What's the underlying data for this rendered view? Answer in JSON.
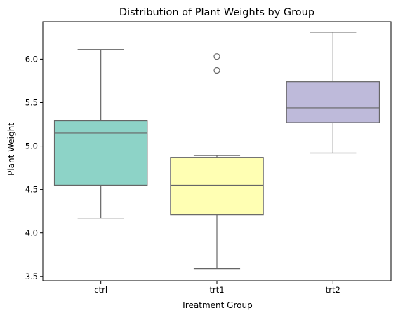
{
  "chart_data": {
    "type": "box",
    "title": "Distribution of Plant Weights by Group",
    "xlabel": "Treatment Group",
    "ylabel": "Plant Weight",
    "ylim": [
      3.45,
      6.43
    ],
    "yticks": [
      3.5,
      4.0,
      4.5,
      5.0,
      5.5,
      6.0
    ],
    "ytick_labels": [
      "3.5",
      "4.0",
      "4.5",
      "5.0",
      "5.5",
      "6.0"
    ],
    "grid": false,
    "legend": "none",
    "categories": [
      "ctrl",
      "trt1",
      "trt2"
    ],
    "boxes": [
      {
        "category": "ctrl",
        "whisker_low": 4.17,
        "q1": 4.55,
        "median": 5.15,
        "q3": 5.29,
        "whisker_high": 6.11,
        "outliers": [],
        "color": "#8dd3c7"
      },
      {
        "category": "trt1",
        "whisker_low": 3.59,
        "q1": 4.21,
        "median": 4.55,
        "q3": 4.87,
        "whisker_high": 4.89,
        "outliers": [
          5.87,
          6.03
        ],
        "color": "#ffffb3"
      },
      {
        "category": "trt2",
        "whisker_low": 4.92,
        "q1": 5.27,
        "median": 5.44,
        "q3": 5.74,
        "whisker_high": 6.31,
        "outliers": [],
        "color": "#bebada"
      }
    ]
  }
}
